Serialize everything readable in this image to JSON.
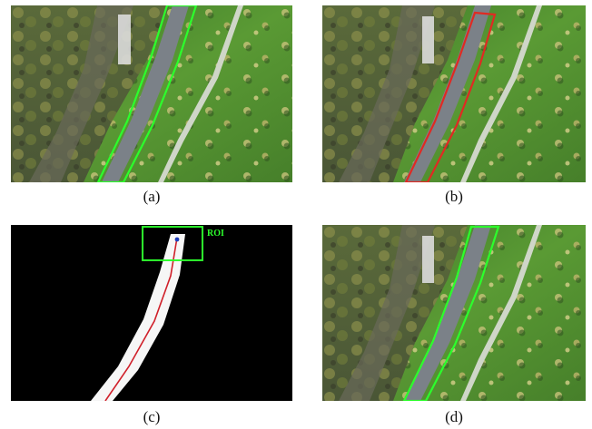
{
  "figure": {
    "panels": [
      {
        "id": "a",
        "caption": "(a)",
        "content": "aerial-view-road",
        "outline": "green"
      },
      {
        "id": "b",
        "caption": "(b)",
        "content": "aerial-view-road",
        "outline": "red"
      },
      {
        "id": "c",
        "caption": "(c)",
        "content": "road-mask",
        "roi_label": "ROI"
      },
      {
        "id": "d",
        "caption": "(d)",
        "content": "aerial-view-road",
        "outline": "green"
      }
    ]
  },
  "colors": {
    "grass": "#4d8a2e",
    "road": "#7b8188",
    "outline_green": "#2cff2c",
    "outline_red": "#e02a22",
    "mask_bg": "#000000",
    "mask_road": "#f6f6f6",
    "centerline": "#d0202a"
  }
}
